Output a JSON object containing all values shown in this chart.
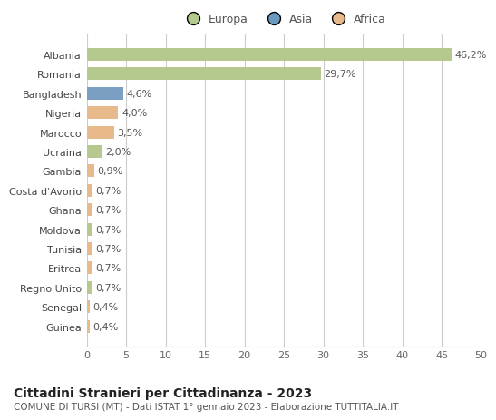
{
  "categories": [
    "Guinea",
    "Senegal",
    "Regno Unito",
    "Eritrea",
    "Tunisia",
    "Moldova",
    "Ghana",
    "Costa d'Avorio",
    "Gambia",
    "Ucraina",
    "Marocco",
    "Nigeria",
    "Bangladesh",
    "Romania",
    "Albania"
  ],
  "values": [
    0.4,
    0.4,
    0.7,
    0.7,
    0.7,
    0.7,
    0.7,
    0.7,
    0.9,
    2.0,
    3.5,
    4.0,
    4.6,
    29.7,
    46.2
  ],
  "continents": [
    "Africa",
    "Africa",
    "Europa",
    "Africa",
    "Africa",
    "Europa",
    "Africa",
    "Africa",
    "Africa",
    "Europa",
    "Africa",
    "Africa",
    "Asia",
    "Europa",
    "Europa"
  ],
  "labels": [
    "0,4%",
    "0,4%",
    "0,7%",
    "0,7%",
    "0,7%",
    "0,7%",
    "0,7%",
    "0,7%",
    "0,9%",
    "2,0%",
    "3,5%",
    "4,0%",
    "4,6%",
    "29,7%",
    "46,2%"
  ],
  "colors": {
    "Europa": "#b5c98e",
    "Asia": "#7a9fc2",
    "Africa": "#e8b98a"
  },
  "legend_colors": {
    "Europa": "#b5c98e",
    "Asia": "#6a9abf",
    "Africa": "#e8b98a"
  },
  "xlim": [
    0,
    50
  ],
  "xticks": [
    0,
    5,
    10,
    15,
    20,
    25,
    30,
    35,
    40,
    45,
    50
  ],
  "title": "Cittadini Stranieri per Cittadinanza - 2023",
  "subtitle": "COMUNE DI TURSI (MT) - Dati ISTAT 1° gennaio 2023 - Elaborazione TUTTITALIA.IT",
  "background_color": "#ffffff",
  "grid_color": "#cccccc",
  "bar_height": 0.65,
  "label_fontsize": 8,
  "title_fontsize": 10,
  "subtitle_fontsize": 7.5,
  "tick_fontsize": 8,
  "legend_fontsize": 9
}
